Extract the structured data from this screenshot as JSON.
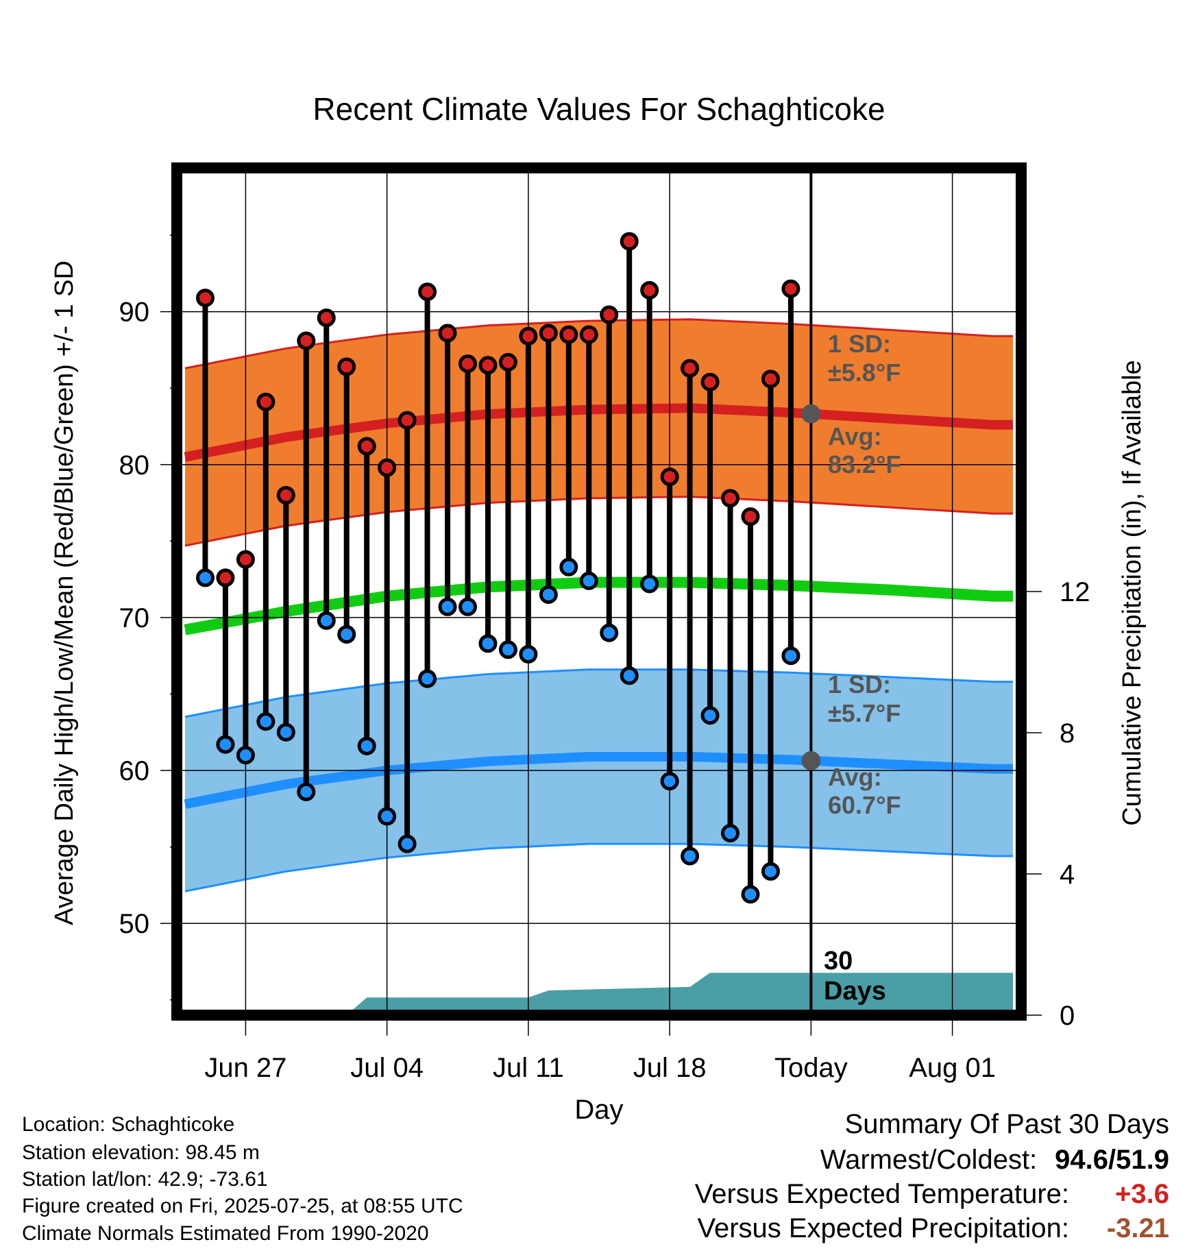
{
  "chart_data": {
    "type": "line",
    "title": "Recent Climate Values For Schaghticoke",
    "xlabel": "Day",
    "ylabel": "Average Daily High/Low/Mean (Red/Blue/Green) +/- 1 SD",
    "y2label": "Cumulative Precipitation (in), If Available",
    "x_ticks": [
      {
        "label": "Jun 27",
        "day": 3
      },
      {
        "label": "Jul 04",
        "day": 10
      },
      {
        "label": "Jul 11",
        "day": 17
      },
      {
        "label": "Jul 18",
        "day": 24
      },
      {
        "label": "Today",
        "day": 31
      },
      {
        "label": "Aug 01",
        "day": 38
      }
    ],
    "x_range": [
      0,
      41
    ],
    "y_ticks": [
      50,
      60,
      70,
      80,
      90
    ],
    "ylim": [
      44.0,
      99.4
    ],
    "y2_ticks": [
      0,
      4,
      8,
      12
    ],
    "y2lim": [
      0,
      24.0
    ],
    "grid": true,
    "today_marker": {
      "day": 31,
      "label_line1": "30",
      "label_line2": "Days"
    },
    "series": [
      {
        "name": "High",
        "color": "#d42020",
        "values": [
          90.9,
          72.6,
          73.8,
          84.1,
          78.0,
          88.1,
          89.6,
          86.4,
          81.2,
          79.8,
          82.9,
          91.3,
          88.6,
          86.6,
          86.5,
          86.7,
          88.4,
          88.6,
          88.5,
          88.5,
          89.8,
          94.6,
          91.4,
          79.2,
          86.3,
          85.4,
          77.8,
          76.6,
          85.6,
          91.5
        ]
      },
      {
        "name": "Low",
        "color": "#1f8fff",
        "values": [
          72.6,
          61.7,
          61.0,
          63.2,
          62.5,
          58.6,
          69.8,
          68.9,
          61.6,
          57.0,
          55.2,
          66.0,
          70.7,
          70.7,
          68.3,
          67.9,
          67.6,
          71.5,
          73.3,
          72.4,
          69.0,
          66.2,
          72.2,
          59.3,
          54.4,
          63.6,
          55.9,
          51.9,
          53.4,
          67.5
        ]
      }
    ],
    "normals": {
      "days": [
        0,
        5,
        10,
        15,
        20,
        25,
        30,
        35,
        40
      ],
      "high_avg": [
        80.5,
        81.8,
        82.7,
        83.3,
        83.6,
        83.7,
        83.4,
        83.0,
        82.6
      ],
      "low_avg": [
        57.8,
        59.1,
        60.0,
        60.6,
        60.9,
        60.9,
        60.7,
        60.4,
        60.1
      ],
      "mean_avg": [
        69.2,
        70.4,
        71.4,
        72.0,
        72.3,
        72.3,
        72.1,
        71.8,
        71.4
      ],
      "high_sd": 5.8,
      "low_sd": 5.7,
      "high_color": "#d42020",
      "high_band_color": "#f07d2d",
      "low_color": "#1f8fff",
      "low_band_color": "#85c1e9",
      "mean_color": "#10cc10"
    },
    "precipitation": {
      "color": "#4a9ea6",
      "steps": [
        {
          "day": 0,
          "value": 0
        },
        {
          "day": 8,
          "value": 0
        },
        {
          "day": 9,
          "value": 0.5
        },
        {
          "day": 17,
          "value": 0.5
        },
        {
          "day": 18,
          "value": 0.7
        },
        {
          "day": 25,
          "value": 0.8
        },
        {
          "day": 26,
          "value": 1.2
        },
        {
          "day": 41,
          "value": 1.2
        }
      ]
    }
  },
  "annotations": {
    "high_sd_line1": "1 SD:",
    "high_sd_line2": "±5.8°F",
    "high_avg_line1": "Avg:",
    "high_avg_line2": "83.2°F",
    "low_sd_line1": "1 SD:",
    "low_sd_line2": "±5.7°F",
    "low_avg_line1": "Avg:",
    "low_avg_line2": "60.7°F",
    "text_color": "#555555"
  },
  "footer": {
    "location": "Location: Schaghticoke",
    "elevation": "Station elevation: 98.45 m",
    "latlon": "Station lat/lon: 42.9; -73.61",
    "created": "Figure created on Fri, 2025-07-25, at 08:55 UTC",
    "normals": "Climate Normals Estimated From 1990-2020"
  },
  "summary": {
    "title": "Summary Of Past 30 Days",
    "warm_cold_label": "Warmest/Coldest:",
    "warm_cold_value": "94.6/51.9",
    "temp_label": "Versus Expected Temperature:",
    "temp_value": "+3.6",
    "temp_color": "#d42020",
    "precip_label": "Versus Expected Precipitation:",
    "precip_value": "-3.21",
    "precip_color": "#a0522d"
  }
}
